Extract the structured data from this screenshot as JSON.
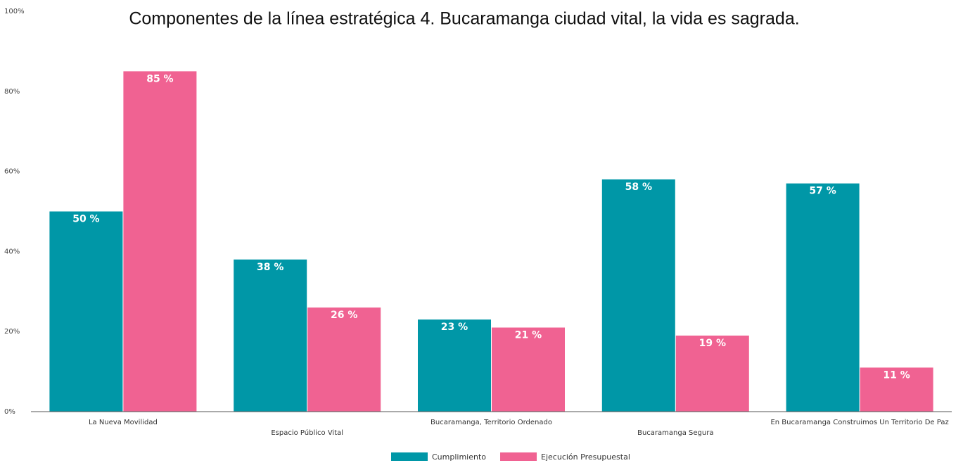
{
  "chart_data": {
    "type": "bar",
    "title": "Componentes de la línea estratégica 4. Bucaramanga ciudad vital, la vida es sagrada.",
    "categories": [
      "La Nueva Movilidad",
      "Espacio Público Vital",
      "Bucaramanga, Territorio Ordenado",
      "Bucaramanga Segura",
      "En Bucaramanga Construimos Un Territorio De Paz"
    ],
    "series": [
      {
        "name": "Cumplimiento",
        "color": "#0097a7",
        "values": [
          50,
          38,
          23,
          58,
          57
        ],
        "value_labels": [
          "50 %",
          "38 %",
          "23 %",
          "58 %",
          "57 %"
        ]
      },
      {
        "name": "Ejecución Presupuestal",
        "color": "#f06292",
        "values": [
          85,
          26,
          21,
          19,
          11
        ],
        "value_labels": [
          "85 %",
          "26 %",
          "21 %",
          "19 %",
          "11 %"
        ]
      }
    ],
    "ylim": [
      0,
      100
    ],
    "yticks": [
      {
        "value": 0,
        "label": "0%"
      },
      {
        "value": 20,
        "label": "20%"
      },
      {
        "value": 40,
        "label": "40%"
      },
      {
        "value": 60,
        "label": "60%"
      },
      {
        "value": 80,
        "label": "80%"
      },
      {
        "value": 100,
        "label": "100%"
      }
    ],
    "grid": false,
    "legend": "bottom"
  }
}
